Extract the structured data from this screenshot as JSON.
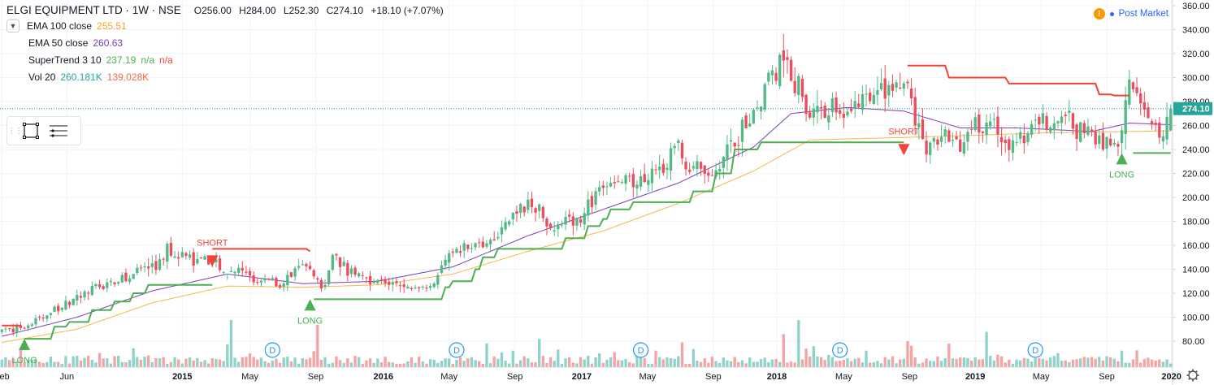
{
  "header": {
    "symbol_title": "ELGI EQUIPMENT LTD · 1W · NSE",
    "open": "O256.00",
    "high": "H284.00",
    "low": "L252.30",
    "close": "C274.10",
    "change": "+18.10 (+7.07%)"
  },
  "studies": [
    {
      "label": "EMA 100 close",
      "values": [
        "255.51"
      ],
      "colors": [
        "#f5a623"
      ]
    },
    {
      "label": "EMA 50 close",
      "values": [
        "260.63"
      ],
      "colors": [
        "#7b3fb5"
      ]
    },
    {
      "label": "SuperTrend 3 10",
      "values": [
        "237.19",
        "n/a",
        "n/a"
      ],
      "colors": [
        "#4caf50",
        "#4caf50",
        "#f44336"
      ]
    },
    {
      "label": "Vol 20",
      "values": [
        "260.181K",
        "139.028K"
      ],
      "colors": [
        "#26a69a",
        "#ef6c42"
      ]
    }
  ],
  "status": {
    "label": "Post Market",
    "warning_icon": "!"
  },
  "toolbox": {
    "icons": [
      "drag-handle-icon",
      "rectangle-select-icon",
      "object-tree-icon"
    ]
  },
  "colors": {
    "up": "#53b987",
    "down": "#eb4d5c",
    "ema100": "#f5b94a",
    "ema50": "#7b3fb5",
    "st_up": "#4caf50",
    "st_down": "#f44336",
    "vol_up": "#8fd3c8",
    "vol_down": "#f5a3a3",
    "last_price_bg": "#26a69a",
    "dividend": "#2196f3"
  },
  "chart_data": {
    "type": "candlestick",
    "title": "ELGI EQUIPMENT LTD · 1W · NSE",
    "timeframe": "1W",
    "last_price": 274.1,
    "price_axis": {
      "ticks": [
        80,
        100,
        120,
        140,
        160,
        180,
        200,
        220,
        240,
        260,
        280,
        300,
        320,
        340,
        360
      ],
      "ylim": [
        70,
        362
      ],
      "labels": [
        "80.00",
        "100.00",
        "120.00",
        "140.00",
        "160.00",
        "180.00",
        "200.00",
        "220.00",
        "240.00",
        "260.00",
        "280.00",
        "300.00",
        "320.00",
        "340.00",
        "360.00"
      ]
    },
    "time_axis": {
      "labels": [
        "Feb",
        "Jun",
        "2015",
        "May",
        "Sep",
        "2016",
        "May",
        "Sep",
        "2017",
        "May",
        "Sep",
        "2018",
        "May",
        "Sep",
        "2019",
        "May",
        "Sep",
        "2020"
      ],
      "ticks": [
        0,
        17.3,
        48,
        66,
        83.5,
        101.5,
        119,
        136.5,
        154.3,
        171.8,
        189.3,
        206.2,
        224,
        241.5,
        259,
        276.5,
        294,
        311.2
      ]
    },
    "anchors": [
      [
        0,
        88
      ],
      [
        6,
        92
      ],
      [
        12,
        102
      ],
      [
        18,
        112
      ],
      [
        24,
        122
      ],
      [
        30,
        130
      ],
      [
        36,
        138
      ],
      [
        42,
        145
      ],
      [
        44,
        157
      ],
      [
        48,
        152
      ],
      [
        52,
        146
      ],
      [
        56,
        145
      ],
      [
        60,
        140
      ],
      [
        64,
        137
      ],
      [
        66,
        133
      ],
      [
        70,
        131
      ],
      [
        74,
        128
      ],
      [
        77,
        136
      ],
      [
        80,
        143
      ],
      [
        82,
        138
      ],
      [
        84,
        128
      ],
      [
        86,
        126
      ],
      [
        88,
        154
      ],
      [
        90,
        147
      ],
      [
        92,
        139
      ],
      [
        96,
        134
      ],
      [
        100,
        131
      ],
      [
        104,
        127
      ],
      [
        108,
        124
      ],
      [
        112,
        126
      ],
      [
        116,
        131
      ],
      [
        118,
        151
      ],
      [
        121,
        157
      ],
      [
        125,
        161
      ],
      [
        129,
        162
      ],
      [
        133,
        176
      ],
      [
        137,
        188
      ],
      [
        140,
        192
      ],
      [
        143,
        191
      ],
      [
        146,
        177
      ],
      [
        148,
        175
      ],
      [
        151,
        182
      ],
      [
        154,
        183
      ],
      [
        158,
        202
      ],
      [
        161,
        213
      ],
      [
        165,
        214
      ],
      [
        169,
        209
      ],
      [
        172,
        222
      ],
      [
        176,
        228
      ],
      [
        180,
        242
      ],
      [
        183,
        224
      ],
      [
        187,
        218
      ],
      [
        190,
        223
      ],
      [
        193,
        236
      ],
      [
        196,
        247
      ],
      [
        198,
        262
      ],
      [
        201,
        272
      ],
      [
        203,
        296
      ],
      [
        206,
        302
      ],
      [
        208,
        323
      ],
      [
        210,
        300
      ],
      [
        212,
        290
      ],
      [
        215,
        272
      ],
      [
        218,
        267
      ],
      [
        221,
        276
      ],
      [
        225,
        270
      ],
      [
        228,
        282
      ],
      [
        231,
        276
      ],
      [
        234,
        286
      ],
      [
        237,
        293
      ],
      [
        239,
        300
      ],
      [
        241,
        288
      ],
      [
        243,
        261
      ],
      [
        246,
        244
      ],
      [
        249,
        252
      ],
      [
        252,
        251
      ],
      [
        255,
        238
      ],
      [
        258,
        264
      ],
      [
        261,
        255
      ],
      [
        264,
        260
      ],
      [
        267,
        250
      ],
      [
        270,
        246
      ],
      [
        273,
        257
      ],
      [
        276,
        267
      ],
      [
        279,
        265
      ],
      [
        282,
        272
      ],
      [
        285,
        260
      ],
      [
        288,
        257
      ],
      [
        291,
        250
      ],
      [
        294,
        243
      ],
      [
        296,
        247
      ],
      [
        298,
        252
      ],
      [
        300,
        299
      ],
      [
        302,
        292
      ],
      [
        305,
        274
      ],
      [
        307,
        258
      ],
      [
        309,
        251
      ],
      [
        311,
        274
      ]
    ],
    "ema50_anchors": [
      [
        0,
        84
      ],
      [
        20,
        100
      ],
      [
        40,
        122
      ],
      [
        60,
        136
      ],
      [
        80,
        128
      ],
      [
        100,
        130
      ],
      [
        120,
        142
      ],
      [
        140,
        168
      ],
      [
        160,
        190
      ],
      [
        180,
        212
      ],
      [
        200,
        242
      ],
      [
        210,
        270
      ],
      [
        225,
        275
      ],
      [
        240,
        272
      ],
      [
        255,
        258
      ],
      [
        270,
        258
      ],
      [
        290,
        255
      ],
      [
        300,
        262
      ],
      [
        311,
        260.6
      ]
    ],
    "ema100_anchors": [
      [
        0,
        79
      ],
      [
        20,
        90
      ],
      [
        40,
        112
      ],
      [
        60,
        126
      ],
      [
        80,
        125
      ],
      [
        100,
        127
      ],
      [
        120,
        136
      ],
      [
        140,
        155
      ],
      [
        160,
        172
      ],
      [
        180,
        195
      ],
      [
        200,
        222
      ],
      [
        215,
        248
      ],
      [
        240,
        250
      ],
      [
        260,
        252
      ],
      [
        280,
        254
      ],
      [
        300,
        255
      ],
      [
        311,
        255.5
      ]
    ],
    "supertrend_segments": [
      {
        "trend": "down",
        "points": [
          [
            0,
            93
          ],
          [
            5,
            93
          ],
          [
            5,
            93
          ]
        ]
      },
      {
        "trend": "up",
        "points": [
          [
            6,
            82
          ],
          [
            12,
            82
          ],
          [
            14,
            92
          ],
          [
            18,
            96
          ],
          [
            24,
            106
          ],
          [
            30,
            113
          ],
          [
            35,
            120
          ],
          [
            39,
            127
          ],
          [
            56,
            127
          ]
        ]
      },
      {
        "trend": "down",
        "points": [
          [
            56,
            157
          ],
          [
            80,
            157
          ],
          [
            82,
            155
          ]
        ]
      },
      {
        "trend": "up",
        "points": [
          [
            83,
            115
          ],
          [
            98,
            115
          ],
          [
            108,
            115
          ],
          [
            118,
            125
          ],
          [
            120,
            130
          ],
          [
            126,
            140
          ],
          [
            128,
            150
          ],
          [
            132,
            157
          ],
          [
            148,
            157
          ],
          [
            150,
            166
          ],
          [
            156,
            176
          ],
          [
            160,
            182
          ],
          [
            162,
            190
          ],
          [
            168,
            196
          ],
          [
            180,
            196
          ],
          [
            184,
            205
          ],
          [
            190,
            220
          ],
          [
            195,
            240
          ],
          [
            202,
            246
          ],
          [
            240,
            246
          ]
        ]
      },
      {
        "trend": "down",
        "points": [
          [
            241,
            310
          ],
          [
            250,
            310
          ],
          [
            252,
            300
          ],
          [
            266,
            300
          ],
          [
            268,
            295
          ],
          [
            290,
            295
          ],
          [
            292,
            286
          ],
          [
            296,
            285
          ],
          [
            300,
            285
          ]
        ]
      },
      {
        "trend": "up",
        "points": [
          [
            301,
            237
          ],
          [
            311,
            237
          ]
        ]
      }
    ],
    "signals": [
      {
        "type": "LONG",
        "bar": 6,
        "price": 82
      },
      {
        "type": "SHORT",
        "bar": 56,
        "price": 157
      },
      {
        "type": "LONG",
        "bar": 82,
        "price": 115
      },
      {
        "type": "SHORT",
        "bar": 240,
        "price": 250
      },
      {
        "type": "LONG",
        "bar": 298,
        "price": 237
      }
    ],
    "dividends": [
      {
        "bar": 72,
        "label": "D"
      },
      {
        "bar": 121,
        "label": "D"
      },
      {
        "bar": 170,
        "label": "D"
      },
      {
        "bar": 223,
        "label": "D"
      },
      {
        "bar": 275,
        "label": "D"
      }
    ],
    "volume_spikes": [
      [
        5,
        0.4
      ],
      [
        35,
        0.4
      ],
      [
        61,
        1.0
      ],
      [
        84,
        0.9
      ],
      [
        136,
        0.35
      ],
      [
        143,
        0.6
      ],
      [
        174,
        0.35
      ],
      [
        208,
        0.7
      ],
      [
        212,
        1.0
      ],
      [
        230,
        0.35
      ],
      [
        241,
        0.55
      ],
      [
        252,
        0.5
      ],
      [
        262,
        0.75
      ],
      [
        298,
        0.35
      ]
    ]
  }
}
